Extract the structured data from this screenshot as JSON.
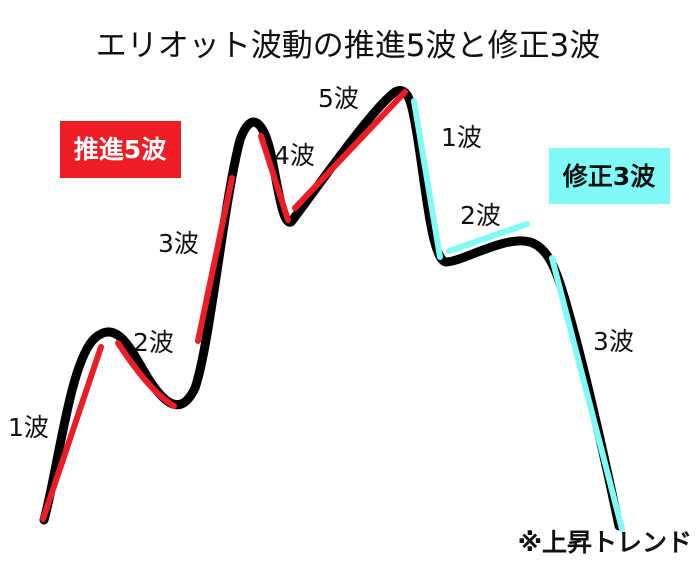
{
  "title": "エリオット波動の推進5波と修正3波",
  "impulse_badge": {
    "label": "推進5波",
    "background": "#ee1c25",
    "text_color": "#ffffff"
  },
  "corrective_badge": {
    "label": "修正3波",
    "background": "#7ffaf6",
    "text_color": "#111111"
  },
  "impulse_waves": [
    "1波",
    "2波",
    "3波",
    "4波",
    "5波"
  ],
  "corrective_waves": [
    "1波",
    "2波",
    "3波"
  ],
  "note": "※上昇トレンド",
  "colors": {
    "price_line": "#000000",
    "impulse": "#ee1c25",
    "corrective": "#7ffaf6"
  }
}
